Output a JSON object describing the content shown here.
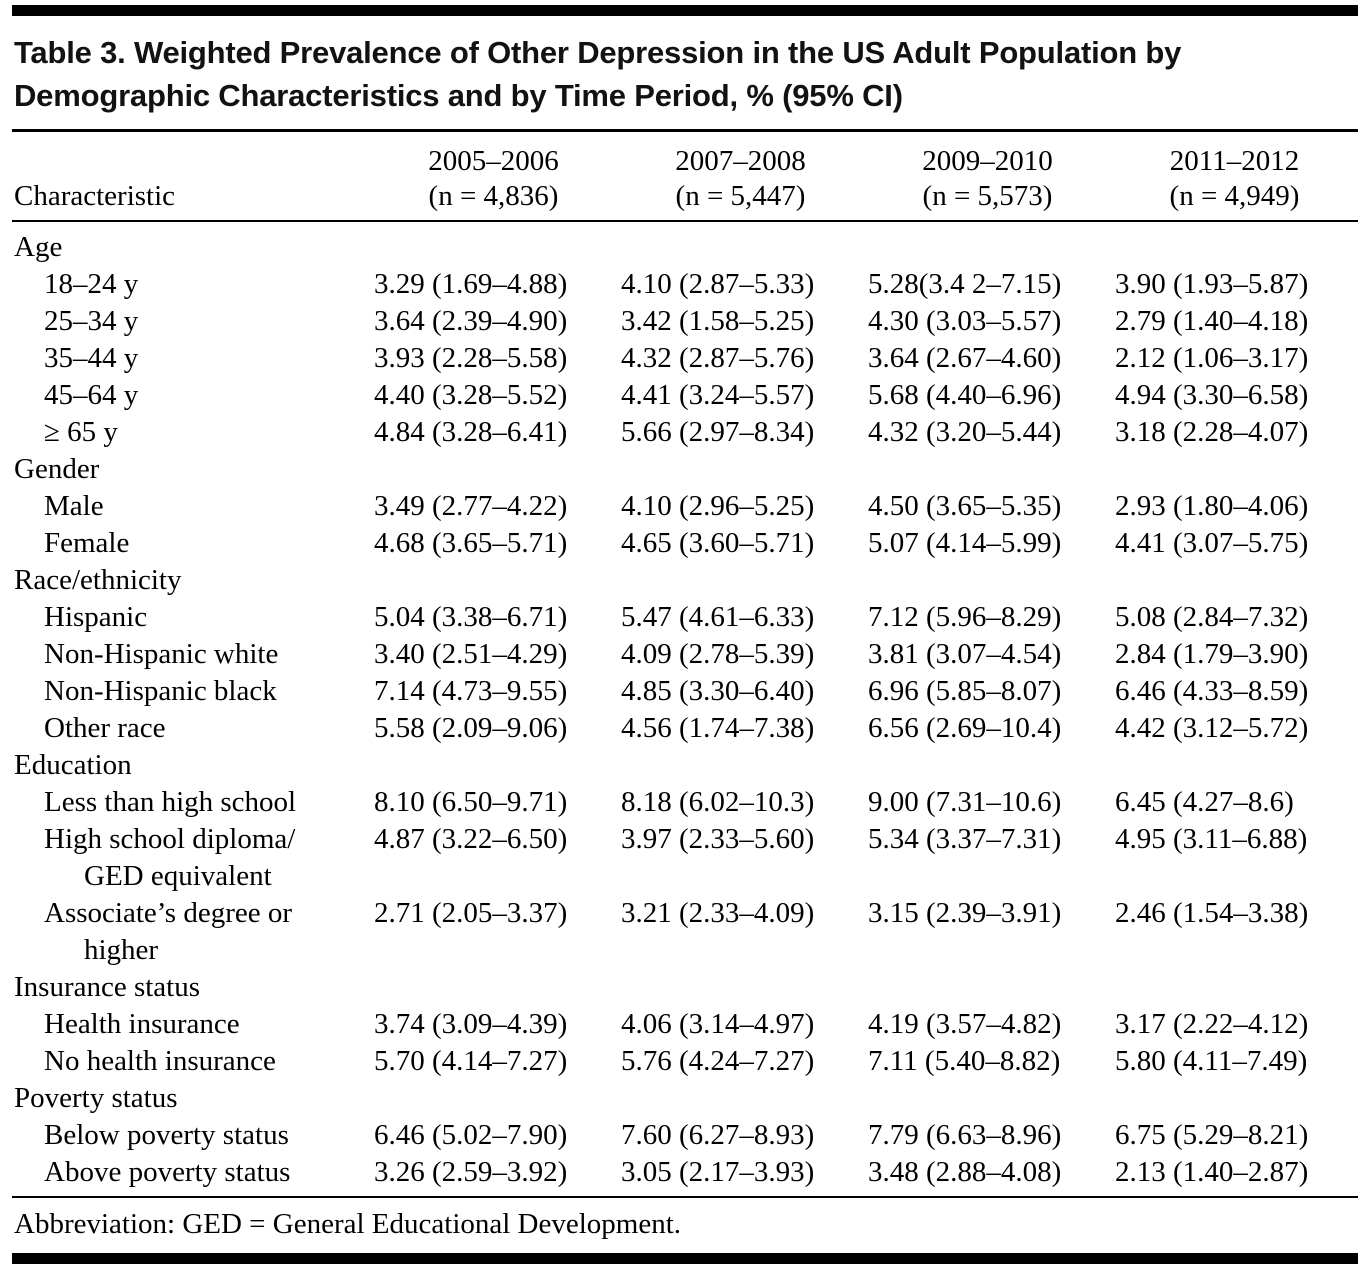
{
  "table": {
    "title_lines": [
      "Table 3. Weighted Prevalence of Other Depression in the US Adult Population by",
      "Demographic Characteristics and by Time Period, % (95% CI)"
    ],
    "characteristic_header": "Characteristic",
    "columns": [
      {
        "period": "2005–2006",
        "n": "(n = 4,836)"
      },
      {
        "period": "2007–2008",
        "n": "(n = 5,447)"
      },
      {
        "period": "2009–2010",
        "n": "(n = 5,573)"
      },
      {
        "period": "2011–2012",
        "n": "(n = 4,949)"
      }
    ],
    "sections": [
      {
        "label": "Age",
        "rows": [
          {
            "label": "18–24 y",
            "values": [
              "3.29 (1.69–4.88)",
              "4.10 (2.87–5.33)",
              "5.28(3.4 2–7.15)",
              "3.90 (1.93–5.87)"
            ]
          },
          {
            "label": "25–34 y",
            "values": [
              "3.64 (2.39–4.90)",
              "3.42 (1.58–5.25)",
              "4.30 (3.03–5.57)",
              "2.79 (1.40–4.18)"
            ]
          },
          {
            "label": "35–44 y",
            "values": [
              "3.93 (2.28–5.58)",
              "4.32 (2.87–5.76)",
              "3.64 (2.67–4.60)",
              "2.12 (1.06–3.17)"
            ]
          },
          {
            "label": "45–64 y",
            "values": [
              "4.40 (3.28–5.52)",
              "4.41 (3.24–5.57)",
              "5.68 (4.40–6.96)",
              "4.94 (3.30–6.58)"
            ]
          },
          {
            "label": "≥ 65 y",
            "values": [
              "4.84 (3.28–6.41)",
              "5.66 (2.97–8.34)",
              "4.32 (3.20–5.44)",
              "3.18 (2.28–4.07)"
            ]
          }
        ]
      },
      {
        "label": "Gender",
        "rows": [
          {
            "label": "Male",
            "values": [
              "3.49 (2.77–4.22)",
              "4.10 (2.96–5.25)",
              "4.50 (3.65–5.35)",
              "2.93 (1.80–4.06)"
            ]
          },
          {
            "label": "Female",
            "values": [
              "4.68 (3.65–5.71)",
              "4.65 (3.60–5.71)",
              "5.07 (4.14–5.99)",
              "4.41 (3.07–5.75)"
            ]
          }
        ]
      },
      {
        "label": "Race/ethnicity",
        "rows": [
          {
            "label": "Hispanic",
            "values": [
              "5.04 (3.38–6.71)",
              "5.47 (4.61–6.33)",
              "7.12 (5.96–8.29)",
              "5.08 (2.84–7.32)"
            ]
          },
          {
            "label": "Non-Hispanic white",
            "values": [
              "3.40 (2.51–4.29)",
              "4.09 (2.78–5.39)",
              "3.81 (3.07–4.54)",
              "2.84 (1.79–3.90)"
            ]
          },
          {
            "label": "Non-Hispanic black",
            "values": [
              "7.14 (4.73–9.55)",
              "4.85 (3.30–6.40)",
              "6.96 (5.85–8.07)",
              "6.46 (4.33–8.59)"
            ]
          },
          {
            "label": "Other race",
            "values": [
              "5.58 (2.09–9.06)",
              "4.56 (1.74–7.38)",
              "6.56 (2.69–10.4)",
              "4.42 (3.12–5.72)"
            ]
          }
        ]
      },
      {
        "label": "Education",
        "rows": [
          {
            "label": "Less than high school",
            "values": [
              "8.10 (6.50–9.71)",
              "8.18 (6.02–10.3)",
              "9.00 (7.31–10.6)",
              "6.45 (4.27–8.6)"
            ]
          },
          {
            "label": "High school diploma/",
            "label2": "GED equivalent",
            "values": [
              "4.87 (3.22–6.50)",
              "3.97 (2.33–5.60)",
              "5.34 (3.37–7.31)",
              "4.95 (3.11–6.88)"
            ]
          },
          {
            "label": "Associate’s degree or",
            "label2": "higher",
            "values": [
              "2.71 (2.05–3.37)",
              "3.21 (2.33–4.09)",
              "3.15 (2.39–3.91)",
              "2.46 (1.54–3.38)"
            ]
          }
        ]
      },
      {
        "label": "Insurance status",
        "rows": [
          {
            "label": "Health insurance",
            "values": [
              "3.74 (3.09–4.39)",
              "4.06 (3.14–4.97)",
              "4.19 (3.57–4.82)",
              "3.17 (2.22–4.12)"
            ]
          },
          {
            "label": "No health insurance",
            "values": [
              "5.70 (4.14–7.27)",
              "5.76 (4.24–7.27)",
              "7.11 (5.40–8.82)",
              "5.80 (4.11–7.49)"
            ]
          }
        ]
      },
      {
        "label": "Poverty status",
        "rows": [
          {
            "label": "Below poverty status",
            "values": [
              "6.46 (5.02–7.90)",
              "7.60 (6.27–8.93)",
              "7.79 (6.63–8.96)",
              "6.75 (5.29–8.21)"
            ]
          },
          {
            "label": "Above poverty status",
            "values": [
              "3.26 (2.59–3.92)",
              "3.05 (2.17–3.93)",
              "3.48 (2.88–4.08)",
              "2.13 (1.40–2.87)"
            ]
          }
        ]
      }
    ],
    "footnote": "Abbreviation: GED = General Educational Development.",
    "colors": {
      "rule": "#000000",
      "text": "#000000"
    }
  }
}
